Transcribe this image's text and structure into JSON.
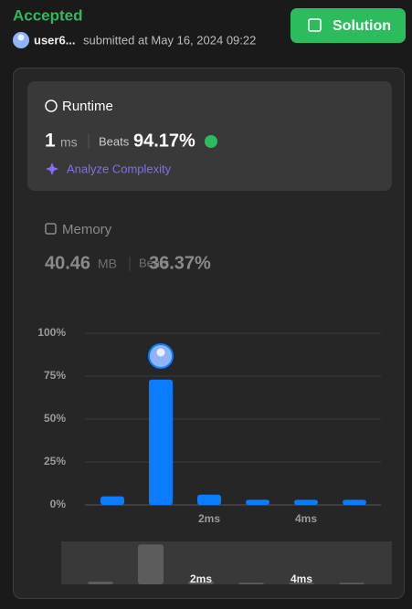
{
  "header": {
    "status": "Accepted",
    "user": "user6...",
    "submitted": "submitted at May 16, 2024 09:22",
    "button": "Solution"
  },
  "runtime": {
    "label": "Runtime",
    "value": "1",
    "unit": "ms",
    "beats_label": "Beats",
    "beats": "94.17%",
    "analyze": "Analyze Complexity"
  },
  "memory": {
    "label": "Memory",
    "value": "40.46",
    "unit": "MB",
    "beats_label": "Beats",
    "beats": "36.37%"
  },
  "chart_data": {
    "type": "bar",
    "categories": [
      null,
      null,
      "2ms",
      null,
      "4ms",
      null
    ],
    "values": [
      5,
      73,
      6,
      3,
      3,
      3
    ],
    "color": "#0a7cff",
    "ylim": [
      0,
      100
    ],
    "yticks": [
      {
        "value": 0,
        "label": "0%"
      },
      {
        "value": 25,
        "label": "25%"
      },
      {
        "value": 50,
        "label": "50%"
      },
      {
        "value": 75,
        "label": "75%"
      },
      {
        "value": 100,
        "label": "100%"
      }
    ],
    "grid": true
  }
}
